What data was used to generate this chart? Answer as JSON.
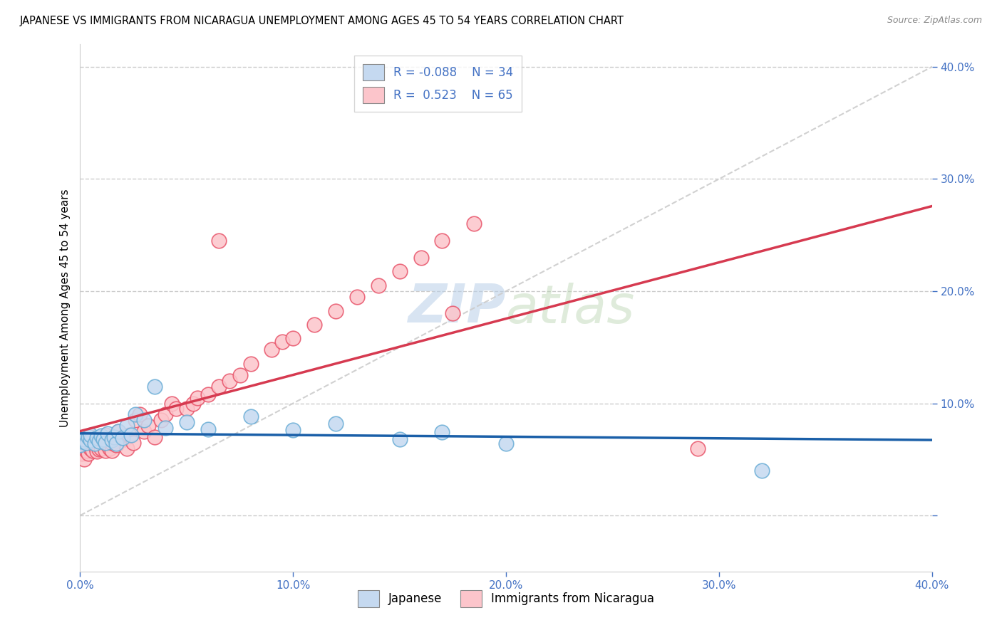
{
  "title": "JAPANESE VS IMMIGRANTS FROM NICARAGUA UNEMPLOYMENT AMONG AGES 45 TO 54 YEARS CORRELATION CHART",
  "source": "Source: ZipAtlas.com",
  "ylabel": "Unemployment Among Ages 45 to 54 years",
  "R_japanese": -0.088,
  "N_japanese": 34,
  "R_nicaragua": 0.523,
  "N_nicaragua": 65,
  "watermark_zip": "ZIP",
  "watermark_atlas": "atlas",
  "japanese_face_color": "#c5d9f0",
  "japanese_edge_color": "#6baed6",
  "nicaragua_face_color": "#fcc5cb",
  "nicaragua_edge_color": "#e8546a",
  "japanese_line_color": "#1a5fa8",
  "nicaragua_line_color": "#d63a50",
  "diagonal_color": "#cccccc",
  "background_color": "#ffffff",
  "grid_color": "#cccccc",
  "tick_color": "#4472c4",
  "title_color": "#000000",
  "source_color": "#888888",
  "xlim": [
    0.0,
    0.4
  ],
  "ylim": [
    -0.05,
    0.42
  ],
  "xticks": [
    0.0,
    0.1,
    0.2,
    0.3,
    0.4
  ],
  "yticks": [
    0.0,
    0.1,
    0.2,
    0.3,
    0.4
  ],
  "jap_x": [
    0.0,
    0.001,
    0.002,
    0.003,
    0.004,
    0.005,
    0.005,
    0.007,
    0.008,
    0.009,
    0.01,
    0.011,
    0.012,
    0.013,
    0.015,
    0.016,
    0.017,
    0.018,
    0.02,
    0.022,
    0.024,
    0.026,
    0.03,
    0.035,
    0.04,
    0.05,
    0.06,
    0.08,
    0.1,
    0.12,
    0.15,
    0.17,
    0.2,
    0.32
  ],
  "jap_y": [
    0.063,
    0.066,
    0.068,
    0.065,
    0.07,
    0.067,
    0.072,
    0.064,
    0.069,
    0.066,
    0.071,
    0.068,
    0.065,
    0.073,
    0.067,
    0.07,
    0.064,
    0.075,
    0.069,
    0.08,
    0.072,
    0.09,
    0.085,
    0.115,
    0.078,
    0.083,
    0.077,
    0.088,
    0.076,
    0.082,
    0.068,
    0.074,
    0.064,
    0.04
  ],
  "nic_x": [
    0.0,
    0.001,
    0.002,
    0.002,
    0.003,
    0.003,
    0.004,
    0.004,
    0.005,
    0.005,
    0.006,
    0.006,
    0.007,
    0.007,
    0.008,
    0.008,
    0.009,
    0.01,
    0.01,
    0.011,
    0.012,
    0.012,
    0.013,
    0.014,
    0.015,
    0.015,
    0.016,
    0.017,
    0.018,
    0.02,
    0.021,
    0.022,
    0.023,
    0.025,
    0.026,
    0.028,
    0.03,
    0.032,
    0.035,
    0.038,
    0.04,
    0.043,
    0.045,
    0.05,
    0.053,
    0.055,
    0.06,
    0.065,
    0.07,
    0.075,
    0.08,
    0.09,
    0.095,
    0.1,
    0.11,
    0.12,
    0.13,
    0.14,
    0.15,
    0.16,
    0.17,
    0.185,
    0.065,
    0.175,
    0.29
  ],
  "nic_y": [
    0.06,
    0.055,
    0.05,
    0.065,
    0.058,
    0.068,
    0.062,
    0.055,
    0.06,
    0.07,
    0.058,
    0.065,
    0.062,
    0.068,
    0.057,
    0.063,
    0.059,
    0.06,
    0.068,
    0.065,
    0.058,
    0.072,
    0.063,
    0.06,
    0.058,
    0.065,
    0.07,
    0.063,
    0.075,
    0.07,
    0.068,
    0.06,
    0.072,
    0.065,
    0.085,
    0.09,
    0.075,
    0.08,
    0.07,
    0.085,
    0.09,
    0.1,
    0.095,
    0.095,
    0.1,
    0.105,
    0.108,
    0.115,
    0.12,
    0.125,
    0.135,
    0.148,
    0.155,
    0.158,
    0.17,
    0.182,
    0.195,
    0.205,
    0.218,
    0.23,
    0.245,
    0.26,
    0.245,
    0.18,
    0.06
  ]
}
